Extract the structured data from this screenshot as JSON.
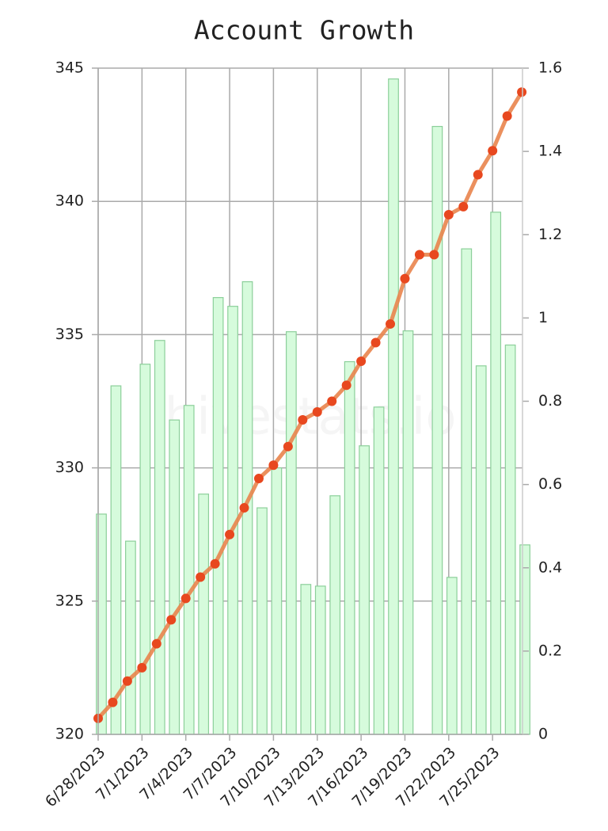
{
  "chart_data": {
    "type": "bar-line",
    "title": "Account Growth",
    "watermark": "hivestats.io",
    "categories": [
      "6/28/2023",
      null,
      null,
      "7/1/2023",
      null,
      null,
      "7/4/2023",
      null,
      null,
      "7/7/2023",
      null,
      null,
      "7/10/2023",
      null,
      null,
      "7/13/2023",
      null,
      null,
      "7/16/2023",
      null,
      null,
      "7/19/2023",
      null,
      null,
      "7/22/2023",
      null,
      null,
      "7/25/2023",
      null,
      null
    ],
    "series": [
      {
        "type": "bar",
        "axis": "y2",
        "color": "#d6fbdc",
        "stroke": "#8ccf9a",
        "values": [
          0.529,
          0.837,
          0.464,
          0.889,
          0.946,
          0.755,
          0.79,
          0.577,
          1.049,
          1.028,
          1.087,
          0.544,
          0.64,
          0.967,
          0.36,
          0.356,
          0.573,
          0.895,
          0.693,
          0.786,
          1.574,
          0.969,
          null,
          1.46,
          0.377,
          1.166,
          0.885,
          1.254,
          0.935,
          0.455
        ]
      },
      {
        "type": "line",
        "axis": "y",
        "color": "#e9844c",
        "marker_color": "#e8481f",
        "values": [
          320.6,
          321.2,
          322.0,
          322.5,
          323.4,
          324.3,
          325.1,
          325.9,
          326.4,
          327.5,
          328.5,
          329.6,
          330.1,
          330.8,
          331.8,
          332.1,
          332.5,
          333.1,
          334.0,
          334.7,
          335.4,
          337.1,
          338.0,
          338.0,
          339.5,
          339.8,
          341.0,
          341.9,
          343.2,
          344.1
        ]
      }
    ],
    "ylim": [
      320,
      345
    ],
    "yticks": [
      320,
      325,
      330,
      335,
      340,
      345
    ],
    "y2lim": [
      0,
      1.6
    ],
    "y2ticks": [
      0,
      0.2,
      0.4,
      0.6,
      0.8,
      1.0,
      1.2,
      1.4,
      1.6
    ],
    "grid": true
  }
}
